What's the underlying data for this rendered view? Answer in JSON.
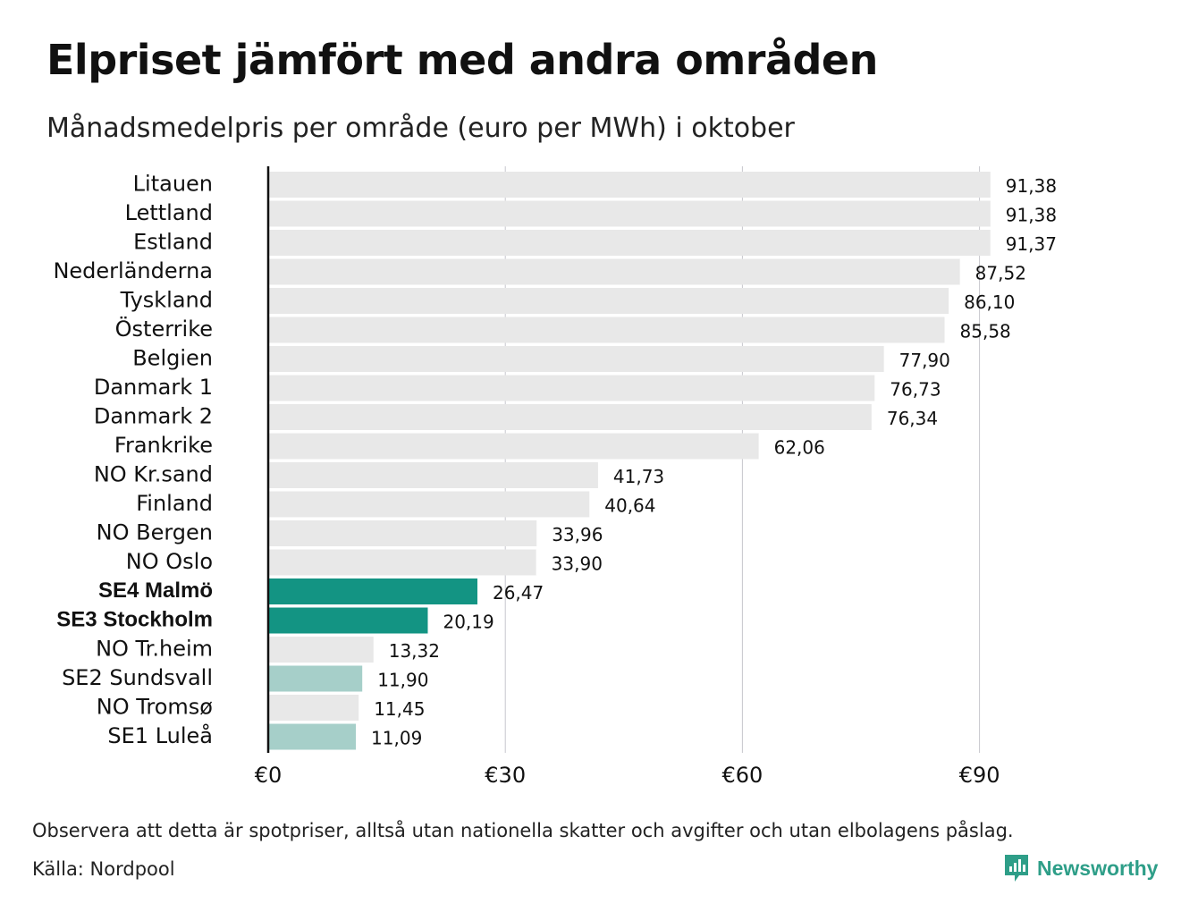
{
  "title": "Elpriset jämfört med andra områden",
  "subtitle": "Månadsmedelpris per område (euro per MWh) i oktober",
  "footnote": "Observera att detta är spotpriser, alltså utan nationella skatter och avgifter och utan elbolagens påslag.",
  "source": "Källa: Nordpool",
  "brand": {
    "name": "Newsworthy",
    "icon": "bar-chart-speech-bubble-icon"
  },
  "colors": {
    "default": "#e8e8e8",
    "highlight": "#139483",
    "light_highlight": "#a6cfc9",
    "axis": "#111111",
    "grid": "#c6c6cc",
    "brand": "#2e9e88"
  },
  "chart_data": {
    "type": "bar",
    "orientation": "horizontal",
    "categories": [
      "Litauen",
      "Lettland",
      "Estland",
      "Nederländerna",
      "Tyskland",
      "Österrike",
      "Belgien",
      "Danmark 1",
      "Danmark 2",
      "Frankrike",
      "NO Kr.sand",
      "Finland",
      "NO Bergen",
      "NO Oslo",
      "SE4 Malmö",
      "SE3 Stockholm",
      "NO Tr.heim",
      "SE2 Sundsvall",
      "NO Tromsø",
      "SE1 Luleå"
    ],
    "values": [
      91.38,
      91.38,
      91.37,
      87.52,
      86.1,
      85.58,
      77.9,
      76.73,
      76.34,
      62.06,
      41.73,
      40.64,
      33.96,
      33.9,
      26.47,
      20.19,
      13.32,
      11.9,
      11.45,
      11.09
    ],
    "value_labels": [
      "91,38",
      "91,38",
      "91,37",
      "87,52",
      "86,10",
      "85,58",
      "77,90",
      "76,73",
      "76,34",
      "62,06",
      "41,73",
      "40,64",
      "33,96",
      "33,90",
      "26,47",
      "20,19",
      "13,32",
      "11,90",
      "11,45",
      "11,09"
    ],
    "highlight": [
      "none",
      "none",
      "none",
      "none",
      "none",
      "none",
      "none",
      "none",
      "none",
      "none",
      "none",
      "none",
      "none",
      "none",
      "strong",
      "strong",
      "none",
      "light",
      "none",
      "light"
    ],
    "xlim": [
      0,
      100
    ],
    "xticks": [
      0,
      30,
      60,
      90
    ],
    "xtick_labels": [
      "€0",
      "€30",
      "€60",
      "€90"
    ],
    "grid": true,
    "legend": "none"
  }
}
